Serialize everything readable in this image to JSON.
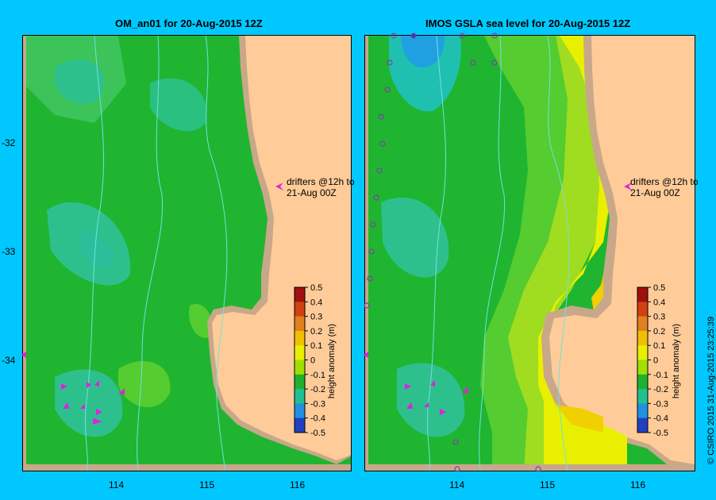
{
  "left_panel": {
    "title": "OM_an01  for 20-Aug-2015 12Z",
    "drifter_note_line1": "drifters @12h to",
    "drifter_note_line2": "21-Aug 00Z"
  },
  "right_panel": {
    "title": "IMOS GSLA sea level  for 20-Aug-2015 12Z",
    "drifter_note_line1": "drifters @12h to",
    "drifter_note_line2": "21-Aug 00Z"
  },
  "lat_ticks": [
    "-32",
    "-33",
    "-34"
  ],
  "lon_ticks": [
    "114",
    "115",
    "116"
  ],
  "colorbar": {
    "label": "height anomaly (m)",
    "ticks": [
      "0.5",
      "0.4",
      "0.3",
      "0.2",
      "0.1",
      "0",
      "-0.1",
      "-0.2",
      "-0.3",
      "-0.4",
      "-0.5"
    ],
    "colors": [
      "#a01010",
      "#d04010",
      "#e08020",
      "#f0c000",
      "#e8f000",
      "#a0e000",
      "#20b030",
      "#20c090",
      "#2090e0",
      "#2040c0",
      "#10106a"
    ]
  },
  "copyright": "© CSIRO 2015   31-Aug-2015 23:25:39",
  "colors": {
    "land": "#ffcc99",
    "shelf": "#c8a888",
    "background": "#00c8ff",
    "drifter": "#e020e0"
  }
}
